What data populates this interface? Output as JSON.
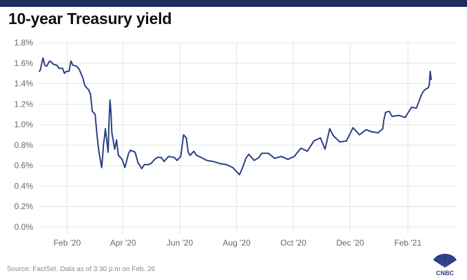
{
  "title": "10-year Treasury yield",
  "source": "Source: FactSet. Data as of 3:30 p.m on Feb. 26",
  "logo_text": "CNBC",
  "colors": {
    "line": "#2b3f87",
    "top_band": "#1f2d5c",
    "grid": "#e4e4e4",
    "axis_text": "#666666"
  },
  "chart_data": {
    "type": "line",
    "title": "10-year Treasury yield",
    "xlabel": "",
    "ylabel": "",
    "grid": true,
    "ylim": [
      0,
      1.8
    ],
    "y_ticks": [
      0.0,
      0.2,
      0.4,
      0.6,
      0.8,
      1.0,
      1.2,
      1.4,
      1.6,
      1.8
    ],
    "y_tick_labels": [
      "0.0%",
      "0.2%",
      "0.4%",
      "0.6%",
      "0.8%",
      "1.0%",
      "1.2%",
      "1.4%",
      "1.6%",
      "1.8%"
    ],
    "x_ticks": [
      "2020-02-01",
      "2020-04-01",
      "2020-06-01",
      "2020-08-01",
      "2020-10-01",
      "2020-12-01",
      "2021-02-01"
    ],
    "x_tick_labels": [
      "Feb '20",
      "Apr '20",
      "Jun '20",
      "Aug '20",
      "Oct '20",
      "Dec '20",
      "Feb '21"
    ],
    "x_range": [
      "2020-01-02",
      "2021-02-26"
    ],
    "series": [
      {
        "x": [
          "2020-01-02",
          "2020-01-03",
          "2020-01-06",
          "2020-01-08",
          "2020-01-10",
          "2020-01-13",
          "2020-01-15",
          "2020-01-17",
          "2020-01-21",
          "2020-01-23",
          "2020-01-27",
          "2020-01-29",
          "2020-01-31",
          "2020-02-03",
          "2020-02-05",
          "2020-02-07",
          "2020-02-11",
          "2020-02-14",
          "2020-02-18",
          "2020-02-20",
          "2020-02-24",
          "2020-02-26",
          "2020-02-28",
          "2020-03-02",
          "2020-03-04",
          "2020-03-06",
          "2020-03-09",
          "2020-03-10",
          "2020-03-11",
          "2020-03-12",
          "2020-03-13",
          "2020-03-16",
          "2020-03-17",
          "2020-03-18",
          "2020-03-19",
          "2020-03-20",
          "2020-03-23",
          "2020-03-25",
          "2020-03-27",
          "2020-03-31",
          "2020-04-03",
          "2020-04-07",
          "2020-04-09",
          "2020-04-14",
          "2020-04-17",
          "2020-04-21",
          "2020-04-24",
          "2020-04-28",
          "2020-05-01",
          "2020-05-05",
          "2020-05-08",
          "2020-05-12",
          "2020-05-15",
          "2020-05-20",
          "2020-05-26",
          "2020-05-29",
          "2020-06-02",
          "2020-06-05",
          "2020-06-08",
          "2020-06-10",
          "2020-06-12",
          "2020-06-16",
          "2020-06-19",
          "2020-06-24",
          "2020-06-30",
          "2020-07-07",
          "2020-07-14",
          "2020-07-21",
          "2020-07-28",
          "2020-08-04",
          "2020-08-07",
          "2020-08-11",
          "2020-08-14",
          "2020-08-20",
          "2020-08-25",
          "2020-08-28",
          "2020-09-04",
          "2020-09-11",
          "2020-09-18",
          "2020-09-25",
          "2020-10-02",
          "2020-10-09",
          "2020-10-16",
          "2020-10-23",
          "2020-10-30",
          "2020-11-04",
          "2020-11-09",
          "2020-11-13",
          "2020-11-20",
          "2020-11-27",
          "2020-12-04",
          "2020-12-11",
          "2020-12-18",
          "2020-12-24",
          "2020-12-31",
          "2021-01-05",
          "2021-01-06",
          "2021-01-08",
          "2021-01-12",
          "2021-01-15",
          "2021-01-22",
          "2021-01-29",
          "2021-02-05",
          "2021-02-10",
          "2021-02-16",
          "2021-02-19",
          "2021-02-23",
          "2021-02-24",
          "2021-02-25",
          "2021-02-26"
        ],
        "values": [
          1.52,
          1.53,
          1.65,
          1.58,
          1.57,
          1.62,
          1.61,
          1.59,
          1.58,
          1.55,
          1.55,
          1.5,
          1.52,
          1.52,
          1.62,
          1.58,
          1.57,
          1.54,
          1.45,
          1.38,
          1.34,
          1.3,
          1.13,
          1.1,
          0.9,
          0.74,
          0.58,
          0.68,
          0.81,
          0.87,
          0.96,
          0.73,
          1.05,
          1.24,
          1.12,
          0.92,
          0.76,
          0.85,
          0.7,
          0.66,
          0.58,
          0.72,
          0.75,
          0.73,
          0.63,
          0.57,
          0.61,
          0.61,
          0.62,
          0.66,
          0.68,
          0.68,
          0.64,
          0.69,
          0.68,
          0.65,
          0.69,
          0.9,
          0.87,
          0.73,
          0.7,
          0.74,
          0.7,
          0.68,
          0.65,
          0.64,
          0.62,
          0.61,
          0.58,
          0.51,
          0.57,
          0.67,
          0.71,
          0.65,
          0.68,
          0.72,
          0.72,
          0.67,
          0.69,
          0.66,
          0.69,
          0.77,
          0.74,
          0.84,
          0.87,
          0.76,
          0.96,
          0.89,
          0.83,
          0.84,
          0.97,
          0.9,
          0.95,
          0.93,
          0.92,
          0.96,
          1.04,
          1.12,
          1.13,
          1.08,
          1.09,
          1.07,
          1.17,
          1.16,
          1.3,
          1.34,
          1.36,
          1.39,
          1.52,
          1.44
        ]
      }
    ]
  }
}
